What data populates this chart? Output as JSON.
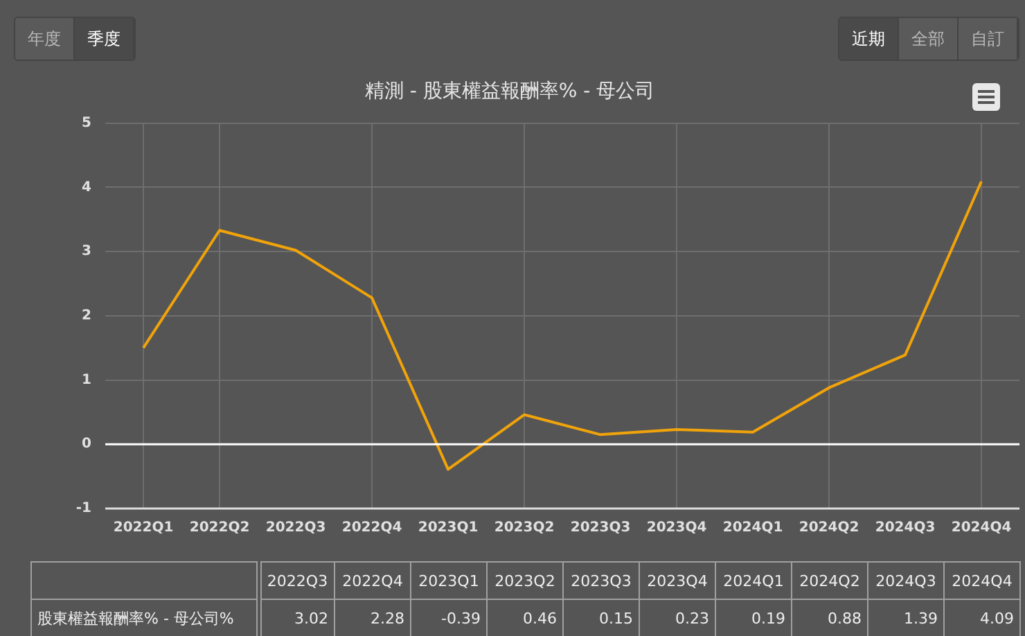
{
  "chart_data": {
    "type": "line",
    "title": "精測 - 股東權益報酬率% - 母公司",
    "categories": [
      "2022Q1",
      "2022Q2",
      "2022Q3",
      "2022Q4",
      "2023Q1",
      "2023Q2",
      "2023Q3",
      "2023Q4",
      "2024Q1",
      "2024Q2",
      "2024Q3",
      "2024Q4"
    ],
    "series": [
      {
        "name": "股東權益報酬率% - 母公司%",
        "color": "#f0a30a",
        "values": [
          1.5,
          3.33,
          3.02,
          2.28,
          -0.39,
          0.46,
          0.15,
          0.23,
          0.19,
          0.88,
          1.39,
          4.09
        ],
        "value_labels": [
          null,
          null,
          "3.02",
          "2.28",
          "-0.39",
          "0.46",
          "0.15",
          "0.23",
          "0.19",
          "0.88",
          "1.39",
          "4.09"
        ]
      }
    ],
    "ylim": [
      -1,
      5
    ],
    "yticks": [
      -1,
      0,
      1,
      2,
      3,
      4,
      5
    ],
    "grid": true,
    "legend": false,
    "marker": "none",
    "line_style": "solid",
    "ref_lines": [
      {
        "axis": "y",
        "value": 0,
        "color": "#ffffff"
      }
    ],
    "annotations": [
      "年度",
      "季度",
      "近期",
      "全部",
      "自訂"
    ]
  }
}
